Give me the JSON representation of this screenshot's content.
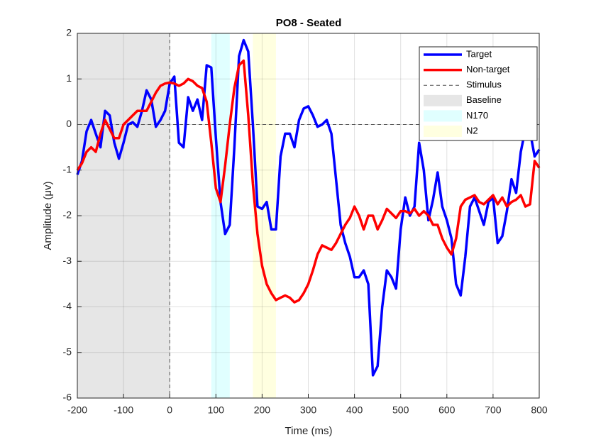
{
  "chart_data": {
    "type": "line",
    "title": "PO8 - Seated",
    "xlabel": "Time (ms)",
    "ylabel": "Amplitude (μv)",
    "x": [
      -200,
      -190,
      -180,
      -170,
      -160,
      -150,
      -140,
      -130,
      -120,
      -110,
      -100,
      -90,
      -80,
      -70,
      -60,
      -50,
      -40,
      -30,
      -20,
      -10,
      0,
      10,
      20,
      30,
      40,
      50,
      60,
      70,
      80,
      90,
      100,
      110,
      120,
      130,
      140,
      150,
      160,
      170,
      180,
      190,
      200,
      210,
      220,
      230,
      240,
      250,
      260,
      270,
      280,
      290,
      300,
      310,
      320,
      330,
      340,
      350,
      360,
      370,
      380,
      390,
      400,
      410,
      420,
      430,
      440,
      450,
      460,
      470,
      480,
      490,
      500,
      510,
      520,
      530,
      540,
      550,
      560,
      570,
      580,
      590,
      600,
      610,
      620,
      630,
      640,
      650,
      660,
      670,
      680,
      690,
      700,
      710,
      720,
      730,
      740,
      750,
      760,
      770,
      780,
      790,
      800
    ],
    "series": [
      {
        "name": "Target",
        "color": "#0000ff",
        "values": [
          -1.1,
          -0.8,
          -0.15,
          0.1,
          -0.2,
          -0.5,
          0.3,
          0.2,
          -0.4,
          -0.75,
          -0.4,
          0.0,
          0.05,
          -0.05,
          0.3,
          0.75,
          0.55,
          -0.05,
          0.1,
          0.3,
          0.9,
          1.05,
          -0.4,
          -0.5,
          0.6,
          0.3,
          0.55,
          0.1,
          1.3,
          1.25,
          -0.3,
          -1.7,
          -2.4,
          -2.2,
          -0.5,
          1.5,
          1.85,
          1.6,
          0.0,
          -1.8,
          -1.85,
          -1.7,
          -2.3,
          -2.3,
          -0.7,
          -0.2,
          -0.2,
          -0.5,
          0.1,
          0.35,
          0.4,
          0.2,
          -0.05,
          0.0,
          0.1,
          -0.2,
          -1.2,
          -2.2,
          -2.6,
          -2.9,
          -3.35,
          -3.35,
          -3.2,
          -3.5,
          -5.5,
          -5.3,
          -4.0,
          -3.2,
          -3.35,
          -3.6,
          -2.3,
          -1.6,
          -2.0,
          -1.8,
          -0.4,
          -1.0,
          -2.1,
          -1.65,
          -1.05,
          -1.8,
          -2.1,
          -2.5,
          -3.5,
          -3.75,
          -2.9,
          -1.8,
          -1.6,
          -1.9,
          -2.2,
          -1.7,
          -1.6,
          -2.6,
          -2.45,
          -1.9,
          -1.2,
          -1.5,
          -0.6,
          -0.1,
          -0.15,
          -0.7,
          -0.55
        ]
      },
      {
        "name": "Non-target",
        "color": "#ff0000",
        "values": [
          -1.0,
          -0.85,
          -0.6,
          -0.5,
          -0.6,
          -0.2,
          0.1,
          -0.1,
          -0.3,
          -0.3,
          0.0,
          0.1,
          0.2,
          0.3,
          0.3,
          0.3,
          0.5,
          0.7,
          0.85,
          0.9,
          0.92,
          0.9,
          0.85,
          0.9,
          1.0,
          0.95,
          0.85,
          0.8,
          0.5,
          -0.4,
          -1.4,
          -1.7,
          -0.9,
          0.0,
          0.8,
          1.3,
          1.4,
          0.2,
          -1.3,
          -2.4,
          -3.1,
          -3.5,
          -3.7,
          -3.85,
          -3.8,
          -3.75,
          -3.8,
          -3.9,
          -3.85,
          -3.7,
          -3.5,
          -3.2,
          -2.85,
          -2.65,
          -2.7,
          -2.75,
          -2.6,
          -2.4,
          -2.2,
          -2.05,
          -1.8,
          -2.0,
          -2.3,
          -2.0,
          -2.0,
          -2.3,
          -2.1,
          -1.85,
          -1.95,
          -2.05,
          -1.9,
          -1.9,
          -1.95,
          -1.85,
          -2.0,
          -1.9,
          -2.0,
          -2.2,
          -2.2,
          -2.5,
          -2.7,
          -2.85,
          -2.5,
          -1.8,
          -1.65,
          -1.6,
          -1.55,
          -1.7,
          -1.75,
          -1.65,
          -1.55,
          -1.75,
          -1.6,
          -1.8,
          -1.7,
          -1.65,
          -1.55,
          -1.8,
          -1.75,
          -0.8,
          -0.95
        ]
      }
    ],
    "stimulus": {
      "name": "Stimulus",
      "x": 0
    },
    "hline": 0,
    "regions": [
      {
        "name": "Baseline",
        "start": -200,
        "end": 0,
        "color": "#e6e6e6"
      },
      {
        "name": "N170",
        "start": 90,
        "end": 130,
        "color": "#e0ffff"
      },
      {
        "name": "N2",
        "start": 180,
        "end": 230,
        "color": "#ffffe0"
      }
    ],
    "xlim": [
      -200,
      800
    ],
    "xticks": [
      -200,
      -100,
      0,
      100,
      200,
      300,
      400,
      500,
      600,
      700,
      800
    ],
    "ylim": [
      -6,
      2
    ],
    "yticks": [
      -6,
      -5,
      -4,
      -3,
      -2,
      -1,
      0,
      1,
      2
    ],
    "grid": true,
    "legend": "upper right"
  }
}
